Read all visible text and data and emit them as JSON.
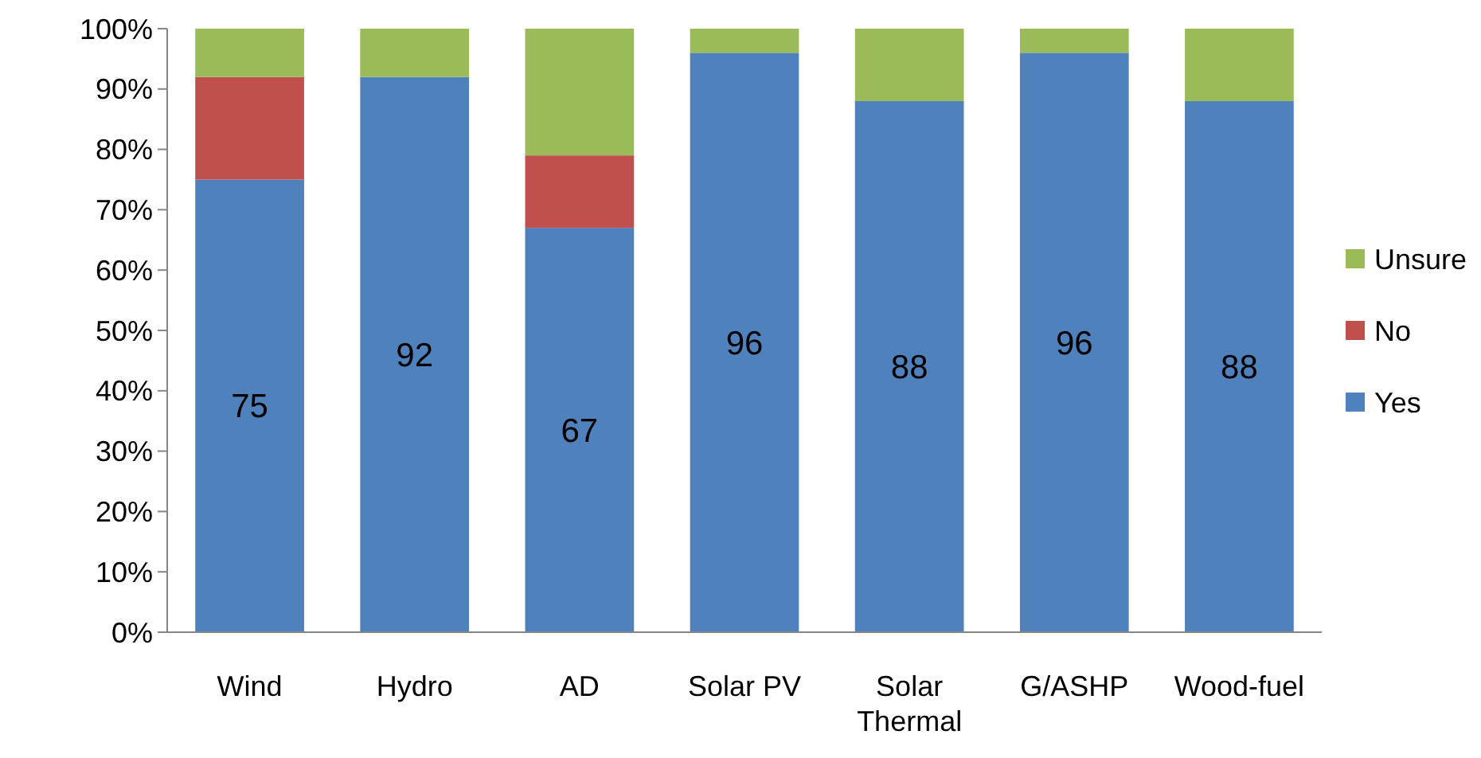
{
  "chart_data": {
    "type": "bar",
    "stacked": true,
    "categories": [
      "Wind",
      "Hydro",
      "AD",
      "Solar PV",
      "Solar Thermal",
      "G/ASHP",
      "Wood-fuel"
    ],
    "series": [
      {
        "name": "Yes",
        "color": "#4f81bd",
        "values": [
          75,
          92,
          67,
          96,
          88,
          96,
          88
        ],
        "value_labels": [
          "75",
          "92",
          "67",
          "96",
          "88",
          "96",
          "88"
        ]
      },
      {
        "name": "No",
        "color": "#c0504d",
        "values": [
          17,
          0,
          12,
          0,
          0,
          0,
          0
        ]
      },
      {
        "name": "Unsure",
        "color": "#9bbb59",
        "values": [
          8,
          8,
          21,
          4,
          12,
          4,
          12
        ]
      }
    ],
    "ylim": [
      0,
      100
    ],
    "yticks": [
      {
        "value": 0,
        "label": "0%"
      },
      {
        "value": 10,
        "label": "10%"
      },
      {
        "value": 20,
        "label": "20%"
      },
      {
        "value": 30,
        "label": "30%"
      },
      {
        "value": 40,
        "label": "40%"
      },
      {
        "value": 50,
        "label": "50%"
      },
      {
        "value": 60,
        "label": "60%"
      },
      {
        "value": 70,
        "label": "70%"
      },
      {
        "value": 80,
        "label": "80%"
      },
      {
        "value": 90,
        "label": "90%"
      },
      {
        "value": 100,
        "label": "100%"
      }
    ],
    "grid": false,
    "legend": "right"
  }
}
